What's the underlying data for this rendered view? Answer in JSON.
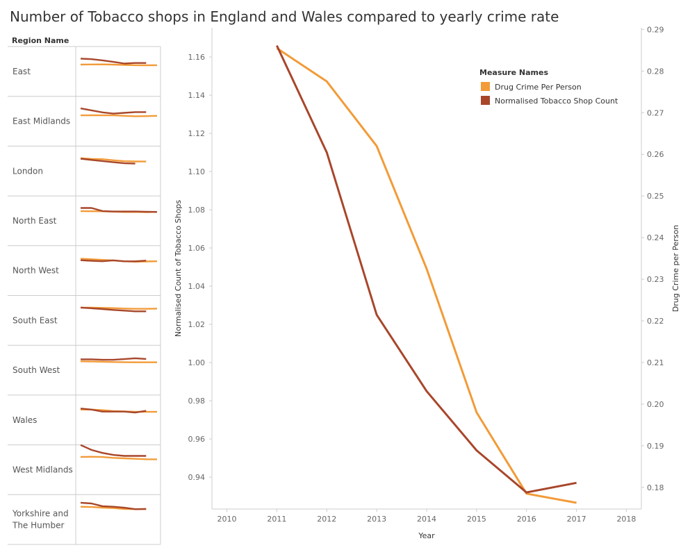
{
  "title": "Number of Tobacco shops in England and Wales compared to yearly crime rate",
  "colors": {
    "drug_crime": "#F29B38",
    "tobacco": "#A8462A",
    "grid": "#d9d9d9",
    "axis_text": "#666666"
  },
  "region_panel": {
    "header": "Region Name",
    "regions": [
      {
        "name": "East",
        "drug_crime": [
          0.92,
          0.918,
          0.917,
          0.921,
          0.928,
          0.933,
          0.935,
          0.933
        ],
        "tobacco": [
          0.8,
          0.812,
          0.836,
          0.866,
          0.9,
          0.888,
          0.888
        ]
      },
      {
        "name": "East Midlands",
        "drug_crime": [
          0.94,
          0.938,
          0.94,
          0.94,
          0.95,
          0.958,
          0.955,
          0.95
        ],
        "tobacco": [
          0.8,
          0.84,
          0.88,
          0.905,
          0.89,
          0.875,
          0.875
        ]
      },
      {
        "name": "London",
        "drug_crime": [
          0.8,
          0.815,
          0.82,
          0.842,
          0.86,
          0.866,
          0.868
        ],
        "tobacco": [
          0.81,
          0.835,
          0.858,
          0.882,
          0.902,
          0.91
        ]
      },
      {
        "name": "North East",
        "drug_crime": [
          0.865,
          0.866,
          0.868,
          0.875,
          0.882,
          0.88,
          0.885,
          0.878
        ],
        "tobacco": [
          0.8,
          0.8,
          0.862,
          0.872,
          0.872,
          0.872,
          0.876,
          0.88
        ]
      },
      {
        "name": "North West",
        "drug_crime": [
          0.82,
          0.83,
          0.843,
          0.855,
          0.87,
          0.88,
          0.875,
          0.87
        ],
        "tobacco": [
          0.85,
          0.862,
          0.87,
          0.852,
          0.872,
          0.872,
          0.858
        ]
      },
      {
        "name": "South East",
        "drug_crime": [
          0.8,
          0.802,
          0.806,
          0.812,
          0.82,
          0.825,
          0.825,
          0.822
        ],
        "tobacco": [
          0.8,
          0.815,
          0.83,
          0.848,
          0.862,
          0.876,
          0.876
        ]
      },
      {
        "name": "South West",
        "drug_crime": [
          0.88,
          0.884,
          0.888,
          0.894,
          0.898,
          0.9,
          0.9,
          0.9
        ],
        "tobacco": [
          0.84,
          0.84,
          0.85,
          0.85,
          0.835,
          0.818,
          0.832
        ]
      },
      {
        "name": "Wales",
        "drug_crime": [
          0.85,
          0.85,
          0.86,
          0.88,
          0.885,
          0.892,
          0.896,
          0.892
        ],
        "tobacco": [
          0.828,
          0.85,
          0.89,
          0.89,
          0.89,
          0.91,
          0.875
        ]
      },
      {
        "name": "West Midlands",
        "drug_crime": [
          0.8,
          0.796,
          0.802,
          0.818,
          0.828,
          0.838,
          0.846,
          0.848
        ],
        "tobacco": [
          0.56,
          0.66,
          0.72,
          0.76,
          0.78,
          0.78,
          0.78
        ]
      },
      {
        "name": "Yorkshire and The Humber",
        "drug_crime": [
          0.8,
          0.806,
          0.818,
          0.828,
          0.845,
          0.85,
          0.846
        ],
        "tobacco": [
          0.72,
          0.735,
          0.79,
          0.8,
          0.82,
          0.85,
          0.845
        ]
      }
    ]
  },
  "chart_data": {
    "type": "line",
    "title": "Number of Tobacco shops in England and Wales compared to yearly crime rate",
    "xlabel": "Year",
    "ylabel": "Normalised Count of Tobacco Shops",
    "y2label": "Drug Crime per Person",
    "x_ticks": [
      "2010",
      "2011",
      "2012",
      "2013",
      "2014",
      "2015",
      "2016",
      "2017",
      "2018"
    ],
    "xlim": [
      2009.7,
      2018.3
    ],
    "ylim": [
      0.9233,
      1.1753
    ],
    "y_ticks": [
      "0.94",
      "0.96",
      "0.98",
      "1.00",
      "1.02",
      "1.04",
      "1.06",
      "1.08",
      "1.10",
      "1.12",
      "1.14",
      "1.16"
    ],
    "y2lim": [
      0.1748,
      0.2904
    ],
    "y2_ticks": [
      "0.18",
      "0.19",
      "0.20",
      "0.21",
      "0.22",
      "0.23",
      "0.24",
      "0.25",
      "0.26",
      "0.27",
      "0.28",
      "0.29"
    ],
    "legend": {
      "title": "Measure Names",
      "position": "top-right",
      "entries": [
        "Drug Crime Per Person",
        "Normalised Tobacco Shop Count"
      ]
    },
    "series": [
      {
        "name": "Drug Crime Per Person",
        "axis": "right",
        "x": [
          2011,
          2012,
          2013,
          2014,
          2015,
          2016,
          2017
        ],
        "values": [
          0.2855,
          0.2775,
          0.262,
          0.2325,
          0.198,
          0.1785,
          0.1763
        ]
      },
      {
        "name": "Normalised Tobacco Shop Count",
        "axis": "left",
        "x": [
          2011,
          2012,
          2013,
          2014,
          2015,
          2016,
          2017
        ],
        "values": [
          1.166,
          1.11,
          1.025,
          0.985,
          0.954,
          0.932,
          0.937
        ]
      }
    ]
  }
}
